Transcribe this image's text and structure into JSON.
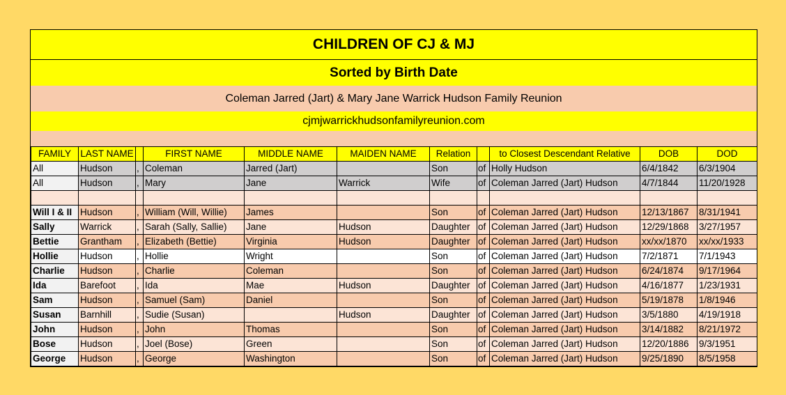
{
  "header": {
    "title": "CHILDREN OF CJ & MJ",
    "subtitle": "Sorted by Birth Date",
    "reunion": "Coleman Jarred (Jart) & Mary Jane Warrick Hudson Family Reunion",
    "url": "cjmjwarrickhudsonfamilyreunion.com"
  },
  "columns": {
    "family": "FAMILY",
    "last": "LAST NAME",
    "first": "FIRST NAME",
    "middle": "MIDDLE NAME",
    "maiden": "MAIDEN NAME",
    "relation": "Relation",
    "relative": "to Closest Descendant Relative",
    "dob": "DOB",
    "dod": "DOD"
  },
  "parents": [
    {
      "family": "All",
      "last": "Hudson",
      "comma": ",",
      "first": "Coleman",
      "middle": "Jarred (Jart)",
      "maiden": "",
      "relation": "Son",
      "of": "of",
      "relative": "Holly Hudson",
      "dob": "6/4/1842",
      "dod": "6/3/1904"
    },
    {
      "family": "All",
      "last": "Hudson",
      "comma": ",",
      "first": "Mary",
      "middle": "Jane",
      "maiden": "Warrick",
      "relation": "Wife",
      "of": "of",
      "relative": "Coleman Jarred (Jart) Hudson",
      "dob": "4/7/1844",
      "dod": "11/20/1928"
    }
  ],
  "children": [
    {
      "family": "Will I & II",
      "last": "Hudson",
      "comma": ",",
      "first": "William (Will, Willie)",
      "middle": "James",
      "maiden": "",
      "relation": "Son",
      "of": "of",
      "relative": "Coleman Jarred (Jart) Hudson",
      "dob": "12/13/1867",
      "dod": "8/31/1941",
      "shade": "peach"
    },
    {
      "family": "Sally",
      "last": "Warrick",
      "comma": ",",
      "first": "Sarah (Sally, Sallie)",
      "middle": "Jane",
      "maiden": "Hudson",
      "relation": "Daughter",
      "of": "of",
      "relative": "Coleman Jarred (Jart) Hudson",
      "dob": "12/29/1868",
      "dod": "3/27/1957",
      "shade": "cream"
    },
    {
      "family": "Bettie",
      "last": "Grantham",
      "comma": ",",
      "first": "Elizabeth (Bettie)",
      "middle": "Virginia",
      "maiden": "Hudson",
      "relation": "Daughter",
      "of": "of",
      "relative": "Coleman Jarred (Jart) Hudson",
      "dob": "xx/xx/1870",
      "dod": "xx/xx/1933",
      "shade": "peach"
    },
    {
      "family": "Hollie",
      "last": "Hudson",
      "comma": ",",
      "first": "Hollie",
      "middle": "Wright",
      "maiden": "",
      "relation": "Son",
      "of": "of",
      "relative": "Coleman Jarred (Jart) Hudson",
      "dob": "7/2/1871",
      "dod": "7/1/1943",
      "shade": "white"
    },
    {
      "family": "Charlie",
      "last": "Hudson",
      "comma": ",",
      "first": "Charlie",
      "middle": "Coleman",
      "maiden": "",
      "relation": "Son",
      "of": "of",
      "relative": "Coleman Jarred (Jart) Hudson",
      "dob": "6/24/1874",
      "dod": "9/17/1964",
      "shade": "peach"
    },
    {
      "family": "Ida",
      "last": "Barefoot",
      "comma": ",",
      "first": "Ida",
      "middle": "Mae",
      "maiden": "Hudson",
      "relation": "Daughter",
      "of": "of",
      "relative": "Coleman Jarred (Jart) Hudson",
      "dob": "4/16/1877",
      "dod": "1/23/1931",
      "shade": "cream"
    },
    {
      "family": "Sam",
      "last": "Hudson",
      "comma": ",",
      "first": "Samuel (Sam)",
      "middle": "Daniel",
      "maiden": "",
      "relation": "Son",
      "of": "of",
      "relative": "Coleman Jarred (Jart) Hudson",
      "dob": "5/19/1878",
      "dod": "1/8/1946",
      "shade": "peach"
    },
    {
      "family": "Susan",
      "last": "Barnhill",
      "comma": ",",
      "first": "Sudie (Susan)",
      "middle": "",
      "maiden": "Hudson",
      "relation": "Daughter",
      "of": "of",
      "relative": "Coleman Jarred (Jart) Hudson",
      "dob": "3/5/1880",
      "dod": "4/19/1918",
      "shade": "cream"
    },
    {
      "family": "John",
      "last": "Hudson",
      "comma": ",",
      "first": "John",
      "middle": "Thomas",
      "maiden": "",
      "relation": "Son",
      "of": "of",
      "relative": "Coleman Jarred (Jart) Hudson",
      "dob": "3/14/1882",
      "dod": "8/21/1972",
      "shade": "peach"
    },
    {
      "family": "Bose",
      "last": "Hudson",
      "comma": ",",
      "first": "Joel (Bose)",
      "middle": "Green",
      "maiden": "",
      "relation": "Son",
      "of": "of",
      "relative": "Coleman Jarred (Jart) Hudson",
      "dob": "12/20/1886",
      "dod": "9/3/1951",
      "shade": "cream"
    },
    {
      "family": "George",
      "last": "Hudson",
      "comma": ",",
      "first": "George",
      "middle": "Washington",
      "maiden": "",
      "relation": "Son",
      "of": "of",
      "relative": "Coleman Jarred (Jart) Hudson",
      "dob": "9/25/1890",
      "dod": "8/5/1958",
      "shade": "peach"
    }
  ]
}
